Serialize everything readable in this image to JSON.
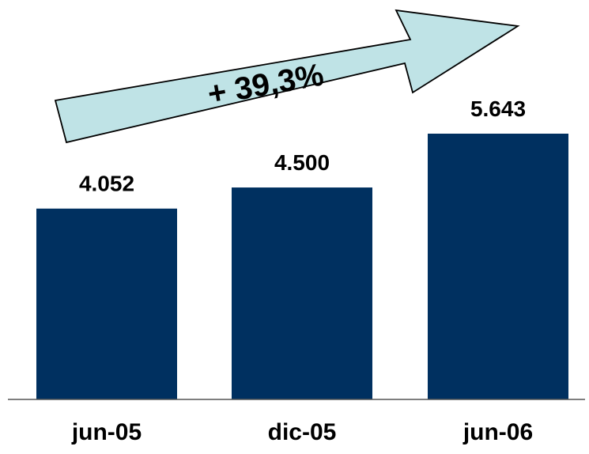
{
  "chart_data": {
    "type": "bar",
    "categories": [
      "jun-05",
      "dic-05",
      "jun-06"
    ],
    "values": [
      4052,
      4500,
      5643
    ],
    "value_labels": [
      "4.052",
      "4.500",
      "5.643"
    ],
    "ylim": [
      0,
      6000
    ],
    "grid": false,
    "legend": "none",
    "bar_color": "#003060",
    "annotation": {
      "text": "+ 39,3%",
      "fill_color": "#bfe3e6",
      "stroke_color": "#000000"
    }
  }
}
